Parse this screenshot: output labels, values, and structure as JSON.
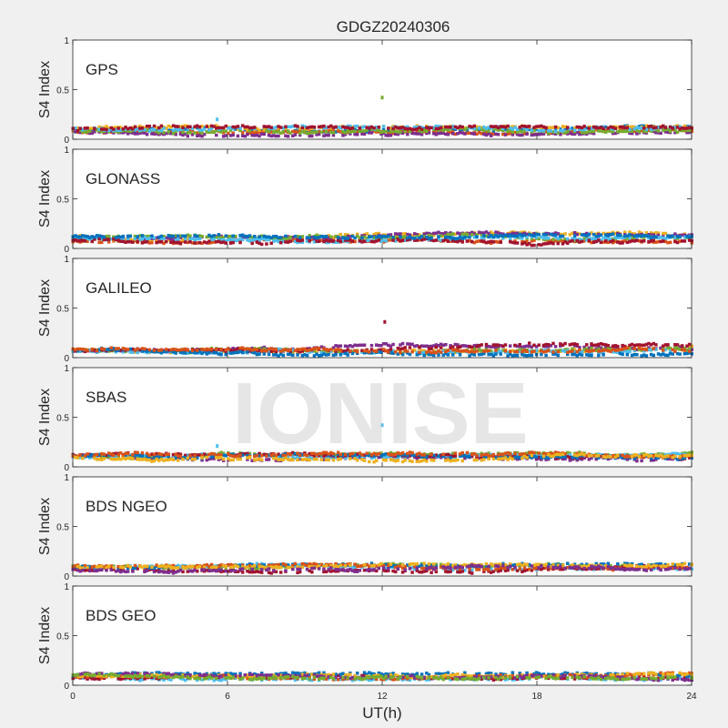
{
  "figure": {
    "title": "GDGZ20240306",
    "watermark": "IONISE",
    "xlabel": "UT(h)",
    "ylabel": "S4 Index",
    "xticks": [
      "0",
      "6",
      "12",
      "18",
      "24"
    ],
    "yticks": [
      "0",
      "0.5",
      "1"
    ]
  },
  "colors": {
    "background": "#f0f0f0",
    "axes_bg": "#ffffff",
    "series": [
      "#0072bd",
      "#d95319",
      "#edb120",
      "#7e2f8e",
      "#77ac30",
      "#4dbeee",
      "#a2142f"
    ]
  },
  "chart_data": [
    {
      "type": "scatter",
      "panel_label": "GPS",
      "xlim": [
        0,
        24
      ],
      "ylim": [
        0,
        1
      ],
      "xlabel": "",
      "ylabel": "S4 Index",
      "typical_range": [
        0.04,
        0.13
      ],
      "outliers": [
        {
          "x": 12.0,
          "y": 0.42,
          "color": "#77ac30"
        },
        {
          "x": 5.6,
          "y": 0.2,
          "color": "#4dbeee"
        }
      ]
    },
    {
      "type": "scatter",
      "panel_label": "GLONASS",
      "xlim": [
        0,
        24
      ],
      "ylim": [
        0,
        1
      ],
      "xlabel": "",
      "ylabel": "S4 Index",
      "typical_range": [
        0.04,
        0.16
      ],
      "outliers": [
        {
          "x": 15.3,
          "y": 0.14,
          "color": "#77ac30"
        }
      ]
    },
    {
      "type": "scatter",
      "panel_label": "GALILEO",
      "xlim": [
        0,
        24
      ],
      "ylim": [
        0,
        1
      ],
      "xlabel": "",
      "ylabel": "S4 Index",
      "typical_range": [
        0.03,
        0.14
      ],
      "outliers": [
        {
          "x": 12.1,
          "y": 0.36,
          "color": "#a2142f"
        }
      ]
    },
    {
      "type": "scatter",
      "panel_label": "SBAS",
      "xlim": [
        0,
        24
      ],
      "ylim": [
        0,
        1
      ],
      "xlabel": "",
      "ylabel": "S4 Index",
      "typical_range": [
        0.06,
        0.14
      ],
      "outliers": [
        {
          "x": 12.0,
          "y": 0.42,
          "color": "#4dbeee"
        },
        {
          "x": 5.6,
          "y": 0.21,
          "color": "#4dbeee"
        }
      ]
    },
    {
      "type": "scatter",
      "panel_label": "BDS NGEO",
      "xlim": [
        0,
        24
      ],
      "ylim": [
        0,
        1
      ],
      "xlabel": "",
      "ylabel": "S4 Index",
      "typical_range": [
        0.04,
        0.12
      ],
      "outliers": []
    },
    {
      "type": "scatter",
      "panel_label": "BDS GEO",
      "xlim": [
        0,
        24
      ],
      "ylim": [
        0,
        1
      ],
      "xlabel": "UT(h)",
      "ylabel": "S4 Index",
      "typical_range": [
        0.06,
        0.12
      ],
      "outliers": []
    }
  ]
}
